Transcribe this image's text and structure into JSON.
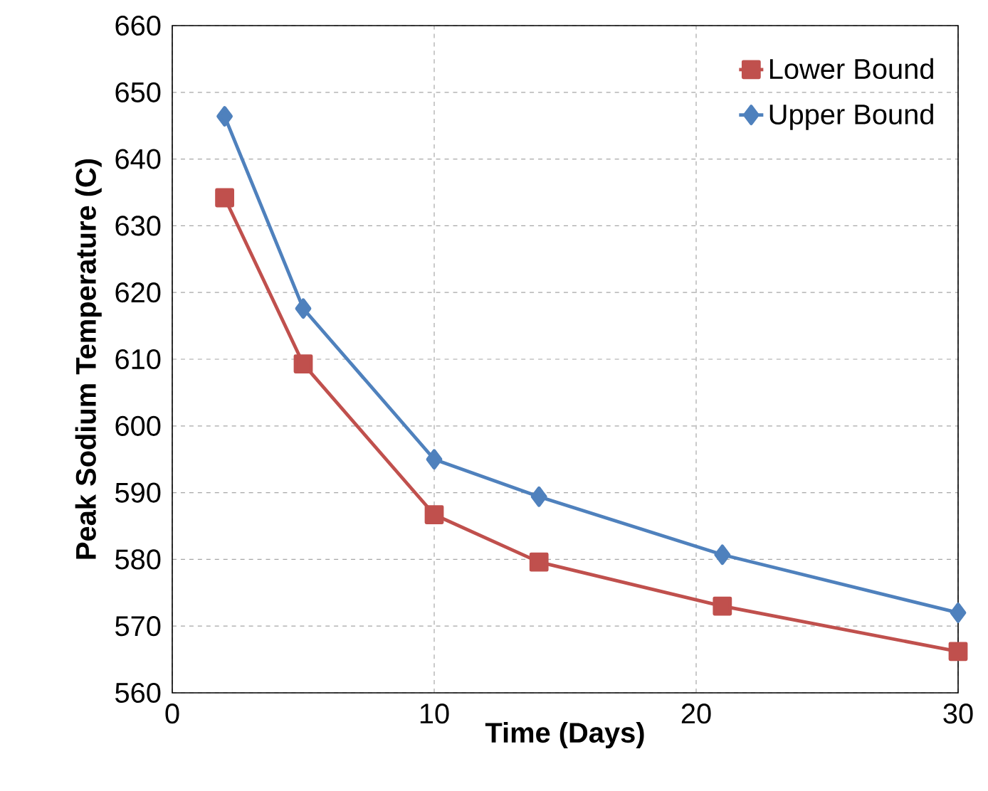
{
  "chart_data": {
    "type": "line",
    "xlabel": "Time  (Days)",
    "ylabel": "Peak Sodium Temperature (C)",
    "xlim": [
      0,
      30
    ],
    "xticks": [
      0,
      10,
      20,
      30
    ],
    "ylim": [
      560,
      660
    ],
    "yticks": [
      560,
      570,
      580,
      590,
      600,
      610,
      620,
      630,
      640,
      650,
      660
    ],
    "grid": true,
    "legend": "top right",
    "line_style": "solid",
    "series": [
      {
        "name": "Lower Bound",
        "color": "#c0504d",
        "marker": "square",
        "x": [
          2,
          5,
          10,
          14,
          21,
          30
        ],
        "values": [
          634.2,
          609.3,
          586.7,
          579.6,
          573,
          566.2
        ]
      },
      {
        "name": "Upper Bound",
        "color": "#4f81bd",
        "marker": "diamond",
        "x": [
          2,
          5,
          10,
          14,
          21,
          30
        ],
        "values": [
          646.4,
          617.6,
          595,
          589.4,
          580.7,
          572
        ]
      }
    ]
  }
}
